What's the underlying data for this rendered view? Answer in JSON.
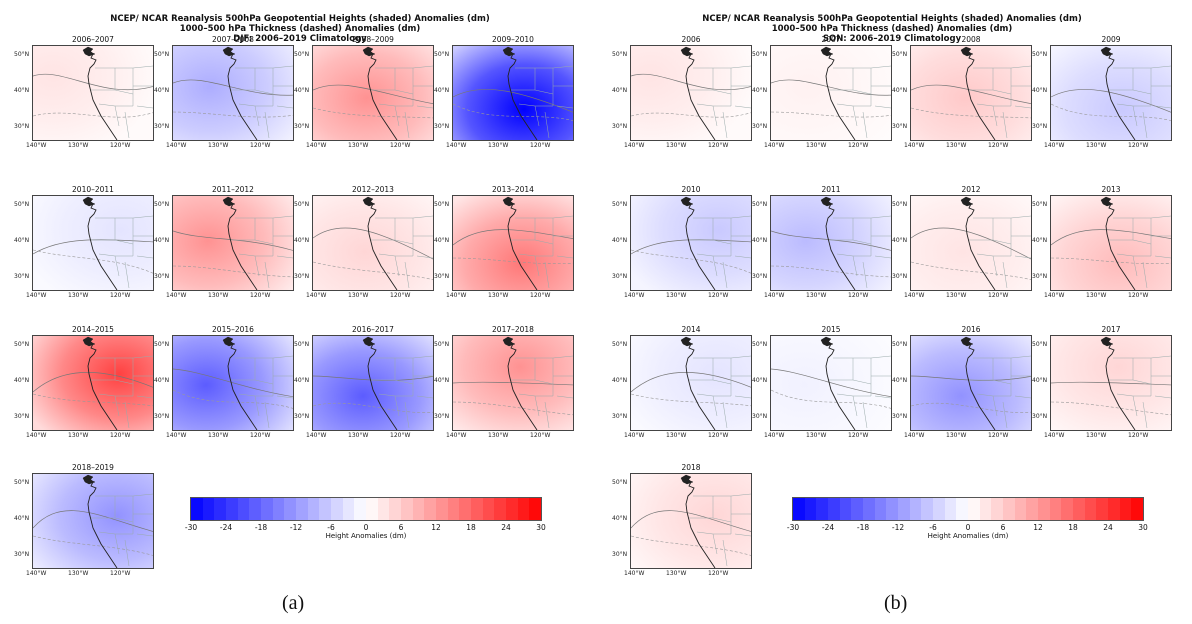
{
  "panel_a": {
    "title_line1": "NCEP/ NCAR Reanalysis 500hPa Geopotential Heights (shaded) Anomalies (dm)",
    "title_line2": "1000–500 hPa Thickness (dashed) Anomalies (dm)",
    "title_line3": "DJF: 2006–2019 Climatology",
    "maps": [
      {
        "label": "2006–2007",
        "anom": 2
      },
      {
        "label": "2007–2008",
        "anom": -6
      },
      {
        "label": "2008–2009",
        "anom": 8
      },
      {
        "label": "2009–2010",
        "anom": -20
      },
      {
        "label": "2010–2011",
        "anom": -2
      },
      {
        "label": "2011–2012",
        "anom": 8
      },
      {
        "label": "2012–2013",
        "anom": 3
      },
      {
        "label": "2013–2014",
        "anom": 10
      },
      {
        "label": "2014–2015",
        "anom": 14
      },
      {
        "label": "2015–2016",
        "anom": -12
      },
      {
        "label": "2016–2017",
        "anom": -12
      },
      {
        "label": "2017–2018",
        "anom": 8
      },
      {
        "label": "2018–2019",
        "anom": -8
      }
    ],
    "colorbar": {
      "ticks": [
        "-30",
        "-24",
        "-18",
        "-12",
        "-6",
        "0",
        "6",
        "12",
        "18",
        "24",
        "30"
      ],
      "label": "Height Anomalies (dm)"
    },
    "figure_letter": "(a)"
  },
  "panel_b": {
    "title_line1": "NCEP/ NCAR Reanalysis 500hPa Geopotential Heights (shaded) Anomalies (dm)",
    "title_line2": "1000–500 hPa Thickness (dashed) Anomalies (dm)",
    "title_line3": "SON: 2006–2019 Climatology",
    "maps": [
      {
        "label": "2006",
        "anom": 2
      },
      {
        "label": "2007",
        "anom": 1
      },
      {
        "label": "2008",
        "anom": 4
      },
      {
        "label": "2009",
        "anom": -4
      },
      {
        "label": "2010",
        "anom": -4
      },
      {
        "label": "2011",
        "anom": -5
      },
      {
        "label": "2012",
        "anom": 2
      },
      {
        "label": "2013",
        "anom": 5
      },
      {
        "label": "2014",
        "anom": -2
      },
      {
        "label": "2015",
        "anom": -1
      },
      {
        "label": "2016",
        "anom": -8
      },
      {
        "label": "2017",
        "anom": 3
      },
      {
        "label": "2018",
        "anom": 3
      }
    ],
    "colorbar": {
      "ticks": [
        "-30",
        "-24",
        "-18",
        "-12",
        "-6",
        "0",
        "6",
        "12",
        "18",
        "24",
        "30"
      ],
      "label": "Height Anomalies (dm)"
    },
    "figure_letter": "(b)"
  },
  "axes": {
    "y_ticks": [
      "50°N",
      "40°N",
      "30°N"
    ],
    "x_ticks": [
      "140°W",
      "130°W",
      "120°W"
    ]
  }
}
